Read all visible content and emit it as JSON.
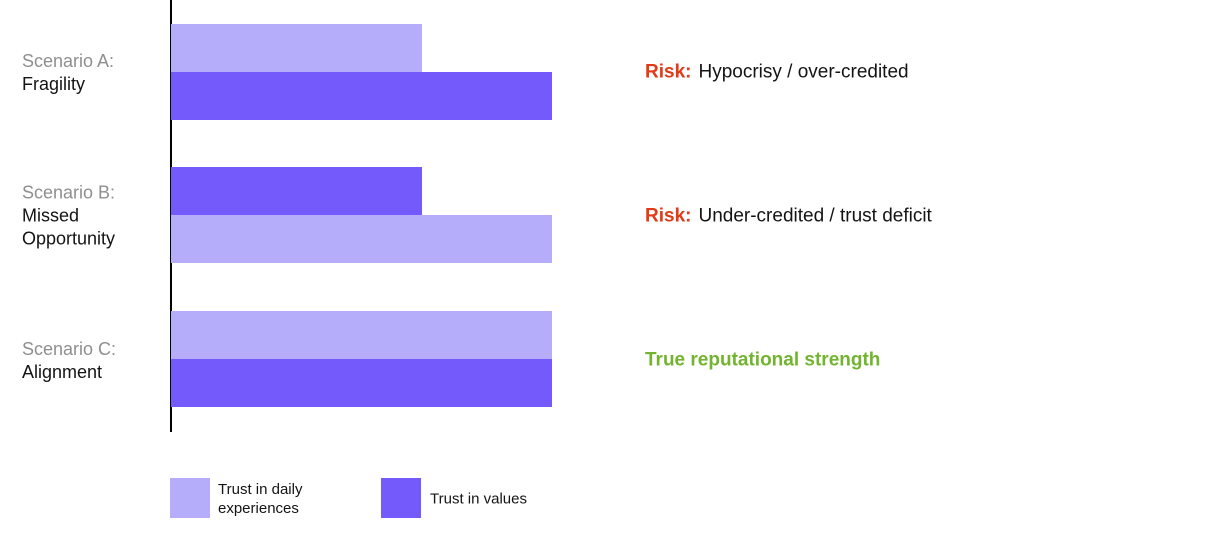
{
  "chart_data": {
    "type": "bar",
    "orientation": "horizontal",
    "title": "",
    "value_scale": {
      "min": 0,
      "max": 100
    },
    "grid": false,
    "legend_position": "bottom",
    "series_legend": [
      {
        "id": "daily",
        "label": "Trust in daily experiences",
        "label_lines": [
          "Trust in daily",
          "experiences"
        ],
        "color": "#b5acfa"
      },
      {
        "id": "values",
        "label": "Trust in values",
        "label_lines": [
          "Trust in values",
          ""
        ],
        "color": "#755afb"
      }
    ],
    "categories": [
      "Scenario A: Fragility",
      "Scenario B: Missed Opportunity",
      "Scenario C: Alignment"
    ],
    "scenarios": [
      {
        "label_muted": "Scenario A:",
        "label_lines": {
          "0": "Fragility",
          "1": ""
        },
        "bars": [
          {
            "series": "daily",
            "value": 66
          },
          {
            "series": "values",
            "value": 100
          }
        ],
        "annotation": {
          "prefix": "Risk:",
          "prefix_color": "#e03a17",
          "text": "Hypocrisy / over-credited",
          "text_color": "#141414",
          "text_bold": false
        }
      },
      {
        "label_muted": "Scenario B:",
        "label_lines": {
          "0": "Missed",
          "1": "Opportunity"
        },
        "bars": [
          {
            "series": "values",
            "value": 66
          },
          {
            "series": "daily",
            "value": 100
          }
        ],
        "annotation": {
          "prefix": "Risk:",
          "prefix_color": "#e03a17",
          "text": "Under-credited / trust deficit",
          "text_color": "#141414",
          "text_bold": false
        }
      },
      {
        "label_muted": "Scenario C:",
        "label_lines": {
          "0": "Alignment",
          "1": ""
        },
        "bars": [
          {
            "series": "daily",
            "value": 100
          },
          {
            "series": "values",
            "value": 100
          }
        ],
        "annotation": {
          "prefix": "",
          "prefix_color": "",
          "text": "True reputational strength",
          "text_color": "#72b42d",
          "text_bold": true
        }
      }
    ]
  },
  "colors": {
    "bar_light": "#b5acfa",
    "bar_dark": "#755afb",
    "risk_red": "#e03a17",
    "strength_green": "#72b42d",
    "label_muted": "#8f8f8f",
    "label_main": "#141414",
    "axis": "#000000"
  }
}
